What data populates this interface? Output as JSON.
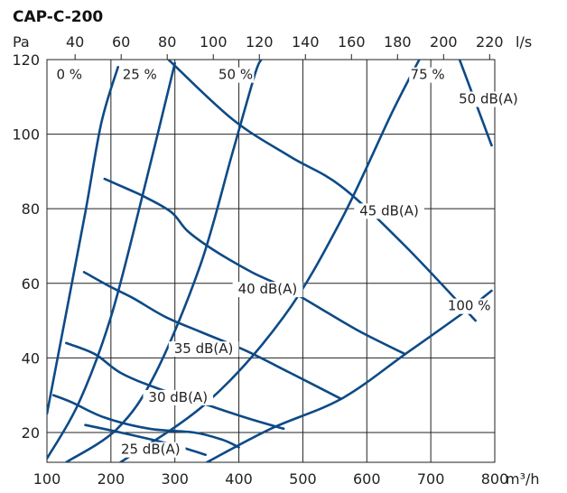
{
  "chart_data": {
    "type": "line",
    "title": "CAP-C-200",
    "xlabel": "m³/h",
    "x2label": "l/s",
    "ylabel": "Pa",
    "xlim": [
      100,
      800
    ],
    "ylim": [
      12,
      120
    ],
    "x_ticks": [
      100,
      200,
      300,
      400,
      500,
      600,
      700,
      800
    ],
    "x2_ticks": [
      40,
      60,
      80,
      100,
      120,
      140,
      160,
      180,
      200,
      220
    ],
    "y_ticks": [
      20,
      40,
      60,
      80,
      100,
      120
    ],
    "grid": true,
    "colors": {
      "curve": "#0d4a86"
    },
    "fan_curves": [
      {
        "name": "0 %",
        "points": [
          [
            100,
            25
          ],
          [
            130,
            52
          ],
          [
            160,
            79
          ],
          [
            185,
            103
          ],
          [
            211,
            118
          ]
        ]
      },
      {
        "name": "25 %",
        "points": [
          [
            100,
            13
          ],
          [
            150,
            28
          ],
          [
            200,
            51
          ],
          [
            250,
            84
          ],
          [
            300,
            119
          ]
        ]
      },
      {
        "name": "50 %",
        "points": [
          [
            130,
            12
          ],
          [
            210,
            21
          ],
          [
            270,
            36
          ],
          [
            340,
            65
          ],
          [
            390,
            95
          ],
          [
            425,
            116
          ],
          [
            435,
            120
          ]
        ]
      },
      {
        "name": "75 %",
        "points": [
          [
            215,
            12
          ],
          [
            350,
            28
          ],
          [
            470,
            51
          ],
          [
            560,
            77
          ],
          [
            640,
            106
          ],
          [
            682,
            120
          ]
        ]
      },
      {
        "name": "100 %",
        "points": [
          [
            350,
            12
          ],
          [
            450,
            21
          ],
          [
            560,
            29
          ],
          [
            660,
            41
          ],
          [
            750,
            52
          ],
          [
            795,
            58
          ]
        ]
      }
    ],
    "sound_curves": [
      {
        "name": "25 dB(A)",
        "points": [
          [
            160,
            22
          ],
          [
            215,
            20
          ],
          [
            290,
            17
          ],
          [
            330,
            15
          ],
          [
            348,
            14
          ]
        ]
      },
      {
        "name": "30 dB(A)",
        "points": [
          [
            110,
            30
          ],
          [
            140,
            28
          ],
          [
            190,
            24
          ],
          [
            260,
            21
          ],
          [
            330,
            20
          ],
          [
            375,
            18
          ],
          [
            400,
            16
          ]
        ]
      },
      {
        "name": "35 dB(A)",
        "points": [
          [
            130,
            44
          ],
          [
            175,
            41
          ],
          [
            215,
            36
          ],
          [
            270,
            32
          ],
          [
            340,
            28
          ],
          [
            410,
            24
          ],
          [
            470,
            21
          ]
        ]
      },
      {
        "name": "40 dB(A)",
        "points": [
          [
            158,
            63
          ],
          [
            200,
            59
          ],
          [
            235,
            56
          ],
          [
            285,
            51
          ],
          [
            340,
            47
          ],
          [
            410,
            42
          ],
          [
            480,
            36
          ],
          [
            560,
            29
          ]
        ]
      },
      {
        "name": "45 dB(A)",
        "points": [
          [
            190,
            88
          ],
          [
            230,
            85
          ],
          [
            255,
            83
          ],
          [
            295,
            79
          ],
          [
            320,
            74
          ],
          [
            360,
            69
          ],
          [
            420,
            63
          ],
          [
            470,
            59
          ],
          [
            530,
            53
          ],
          [
            590,
            47
          ],
          [
            660,
            41
          ]
        ]
      },
      {
        "name": "50 dB(A)",
        "points": [
          [
            290,
            120
          ],
          [
            390,
            104
          ],
          [
            480,
            94
          ],
          [
            560,
            86
          ],
          [
            660,
            70
          ],
          [
            770,
            50
          ]
        ]
      },
      {
        "name": "",
        "points": [
          [
            745,
            120
          ],
          [
            795,
            97
          ]
        ]
      }
    ],
    "labels": {
      "fan": [
        "0 %",
        "25 %",
        "50 %",
        "75 %",
        "100 %"
      ],
      "sound": [
        "25 dB(A)",
        "30 dB(A)",
        "35 dB(A)",
        "40 dB(A)",
        "45 dB(A)",
        "50 dB(A)"
      ]
    }
  }
}
